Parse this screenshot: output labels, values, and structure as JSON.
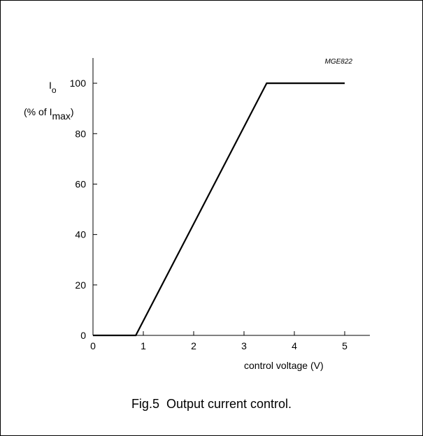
{
  "figure": {
    "caption": "Fig.5  Output current control.",
    "reference_code": "MGE822"
  },
  "chart_data": {
    "type": "line",
    "ylabel_main": "I",
    "ylabel_main_sub": "o",
    "ylabel_unit_prefix": "(% of I",
    "ylabel_unit_sub": "max",
    "ylabel_unit_suffix": ")",
    "xlabel": "control voltage (V)",
    "xlim": [
      0,
      5.5
    ],
    "ylim": [
      0,
      110
    ],
    "xticks": [
      0,
      1,
      2,
      3,
      4,
      5
    ],
    "yticks": [
      0,
      20,
      40,
      60,
      80,
      100
    ],
    "grid": false,
    "series": [
      {
        "x": [
          0,
          0.85,
          3.45,
          5
        ],
        "y": [
          0,
          0,
          100,
          100
        ]
      }
    ],
    "line_color": "#000000"
  }
}
